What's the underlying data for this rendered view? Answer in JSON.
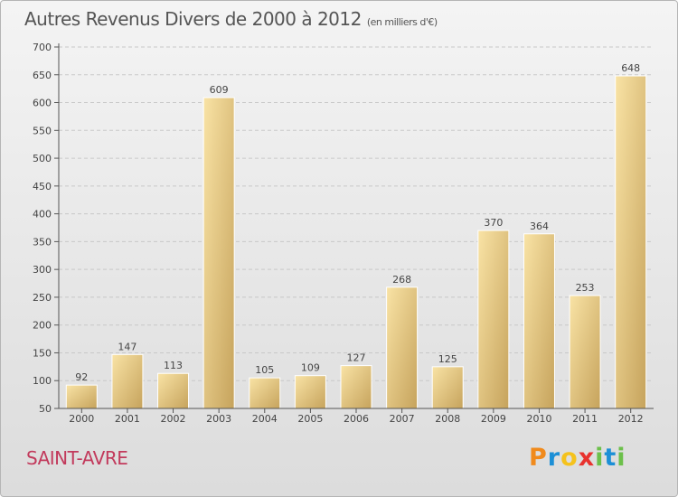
{
  "title": "Autres Revenus Divers de 2000 à 2012",
  "subtitle": "(en milliers d'€)",
  "place": "SAINT-AVRE",
  "logo": {
    "letters": [
      "P",
      "r",
      "o",
      "x",
      "i",
      "t",
      "i"
    ],
    "colors": [
      "#f08a1c",
      "#1c8fd6",
      "#f5c21c",
      "#e8322e",
      "#6cc04a",
      "#1c8fd6",
      "#6cc04a"
    ]
  },
  "colors": {
    "bar_light": "#f6dd9a",
    "bar_dark": "#c8a55e",
    "axis": "#555555",
    "grid": "#c8c8c8"
  },
  "chart_data": {
    "type": "bar",
    "categories": [
      "2000",
      "2001",
      "2002",
      "2003",
      "2004",
      "2005",
      "2006",
      "2007",
      "2008",
      "2009",
      "2010",
      "2011",
      "2012"
    ],
    "values": [
      92,
      147,
      113,
      609,
      105,
      109,
      127,
      268,
      125,
      370,
      364,
      253,
      648
    ],
    "ylim": [
      50,
      700
    ],
    "yticks": [
      50,
      100,
      150,
      200,
      250,
      300,
      350,
      400,
      450,
      500,
      550,
      600,
      650,
      700
    ],
    "grid": "horizontal dashed",
    "xlabel": "",
    "ylabel": ""
  }
}
